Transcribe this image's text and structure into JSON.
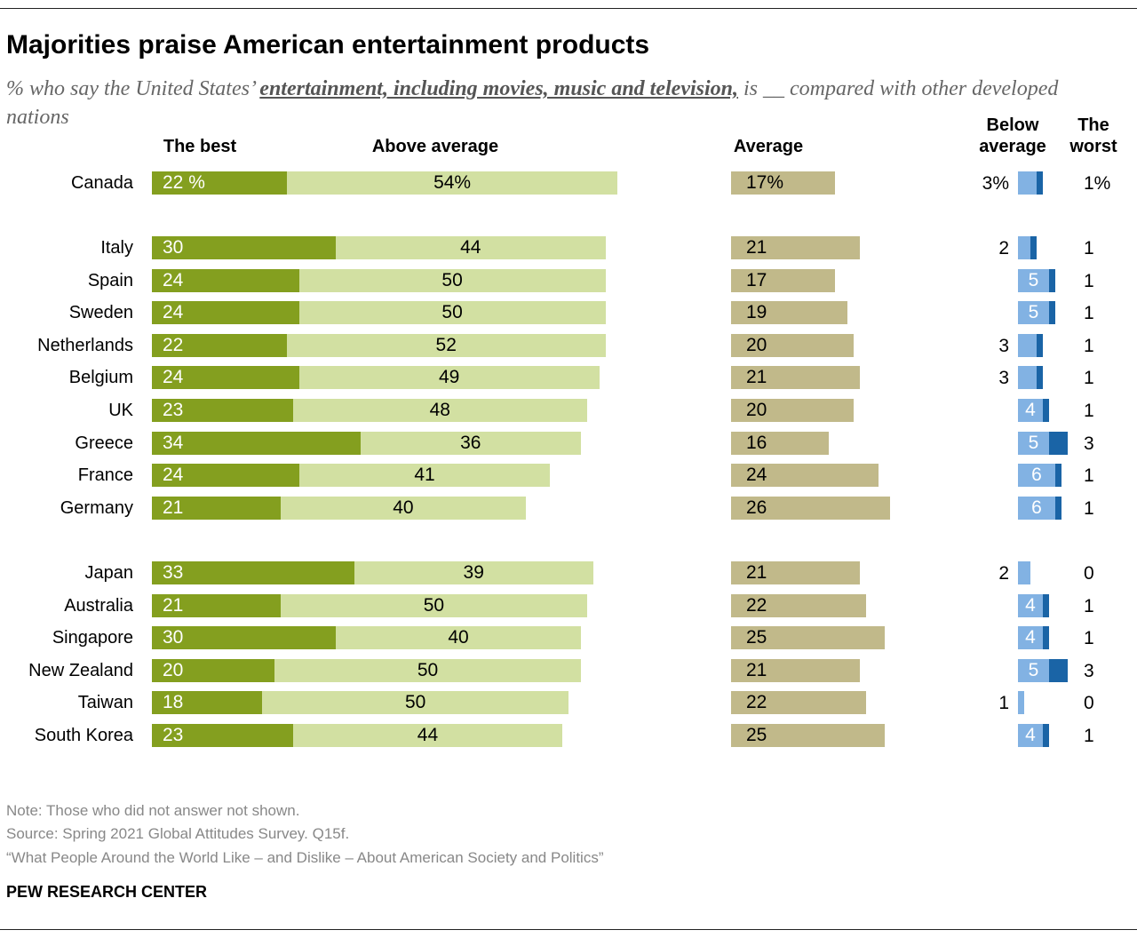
{
  "header": {
    "title": "Majorities praise American entertainment products",
    "subtitle_pre": "% who say the United States’ ",
    "subtitle_em": "entertainment, including movies, music and television,",
    "subtitle_post": " is __ compared with other developed nations"
  },
  "colors": {
    "best": "#849f1f",
    "above": "#d2e0a2",
    "average": "#c1b98a",
    "below": "#82b2e3",
    "worst": "#1a64a6"
  },
  "chart_data": {
    "type": "bar",
    "stacked": true,
    "columns": [
      "The best",
      "Above average",
      "Average",
      "Below average",
      "The worst"
    ],
    "rows": [
      {
        "country": "Canada",
        "best": 22,
        "above": 54,
        "average": 17,
        "below": 3,
        "worst": 1,
        "group": 1
      },
      {
        "country": "Italy",
        "best": 30,
        "above": 44,
        "average": 21,
        "below": 2,
        "worst": 1,
        "group": 2
      },
      {
        "country": "Spain",
        "best": 24,
        "above": 50,
        "average": 17,
        "below": 5,
        "worst": 1,
        "group": 2
      },
      {
        "country": "Sweden",
        "best": 24,
        "above": 50,
        "average": 19,
        "below": 5,
        "worst": 1,
        "group": 2
      },
      {
        "country": "Netherlands",
        "best": 22,
        "above": 52,
        "average": 20,
        "below": 3,
        "worst": 1,
        "group": 2
      },
      {
        "country": "Belgium",
        "best": 24,
        "above": 49,
        "average": 21,
        "below": 3,
        "worst": 1,
        "group": 2
      },
      {
        "country": "UK",
        "best": 23,
        "above": 48,
        "average": 20,
        "below": 4,
        "worst": 1,
        "group": 2
      },
      {
        "country": "Greece",
        "best": 34,
        "above": 36,
        "average": 16,
        "below": 5,
        "worst": 3,
        "group": 2
      },
      {
        "country": "France",
        "best": 24,
        "above": 41,
        "average": 24,
        "below": 6,
        "worst": 1,
        "group": 2
      },
      {
        "country": "Germany",
        "best": 21,
        "above": 40,
        "average": 26,
        "below": 6,
        "worst": 1,
        "group": 2
      },
      {
        "country": "Japan",
        "best": 33,
        "above": 39,
        "average": 21,
        "below": 2,
        "worst": 0,
        "group": 3
      },
      {
        "country": "Australia",
        "best": 21,
        "above": 50,
        "average": 22,
        "below": 4,
        "worst": 1,
        "group": 3
      },
      {
        "country": "Singapore",
        "best": 30,
        "above": 40,
        "average": 25,
        "below": 4,
        "worst": 1,
        "group": 3
      },
      {
        "country": "New Zealand",
        "best": 20,
        "above": 50,
        "average": 21,
        "below": 5,
        "worst": 3,
        "group": 3
      },
      {
        "country": "Taiwan",
        "best": 18,
        "above": 50,
        "average": 22,
        "below": 1,
        "worst": 0,
        "group": 3
      },
      {
        "country": "South Korea",
        "best": 23,
        "above": 44,
        "average": 25,
        "below": 4,
        "worst": 1,
        "group": 3
      }
    ]
  },
  "footer": {
    "note": "Note: Those who did not answer not shown.",
    "source": "Source: Spring 2021 Global Attitudes Survey. Q15f.",
    "report": "“What People Around the World Like – and Dislike – About American Society and Politics”",
    "brand": "PEW RESEARCH CENTER"
  }
}
